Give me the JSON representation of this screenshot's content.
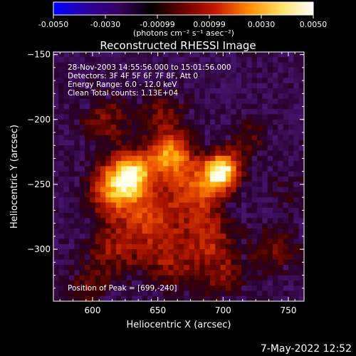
{
  "colorbar": {
    "ticks": [
      "-0.0050",
      "-0.0030",
      "-0.00099",
      "0.00099",
      "0.0030",
      "0.0050"
    ],
    "units": "(photons cm⁻² s⁻¹ asec⁻²)",
    "stops": [
      "#0000ff",
      "#2a00a0",
      "#3a0060",
      "#000000",
      "#6a0000",
      "#c81800",
      "#ff8a00",
      "#ffe060",
      "#ffffff"
    ]
  },
  "chart_data": {
    "type": "heatmap",
    "title": "Reconstructed RHESSI Image",
    "xlabel": "Heliocentric X (arcsec)",
    "ylabel": "Heliocentric Y (arcsec)",
    "xlim": [
      570,
      762
    ],
    "ylim": [
      -340,
      -148
    ],
    "x_ticks": [
      600,
      650,
      700,
      750
    ],
    "y_ticks": [
      -150,
      -200,
      -250,
      -300
    ],
    "info_lines": [
      "28-Nov-2003 14:55:56.000 to 15:01:56.000",
      "Detectors: 3F 4F 5F 6F 7F 8F, Att 0",
      "Energy Range: 6.0 - 12.0 keV",
      "Clean     Total counts: 1.13E+04"
    ],
    "peak_label": "Position of Peak = [699,-240]",
    "peak": [
      699,
      -240
    ],
    "blobs": [
      {
        "x": 699,
        "y": -240,
        "amp": 1.0,
        "s": 10
      },
      {
        "x": 630,
        "y": -242,
        "amp": 0.85,
        "s": 12
      },
      {
        "x": 660,
        "y": -228,
        "amp": 0.75,
        "s": 12
      },
      {
        "x": 615,
        "y": -255,
        "amp": 0.6,
        "s": 14
      },
      {
        "x": 680,
        "y": -255,
        "amp": 0.55,
        "s": 14
      },
      {
        "x": 645,
        "y": -275,
        "amp": 0.5,
        "s": 16
      },
      {
        "x": 690,
        "y": -290,
        "amp": 0.4,
        "s": 14
      },
      {
        "x": 615,
        "y": -300,
        "amp": 0.35,
        "s": 16
      },
      {
        "x": 660,
        "y": -310,
        "amp": 0.35,
        "s": 16
      },
      {
        "x": 700,
        "y": -320,
        "amp": 0.3,
        "s": 14
      },
      {
        "x": 610,
        "y": -200,
        "amp": 0.35,
        "s": 14
      },
      {
        "x": 655,
        "y": -195,
        "amp": 0.3,
        "s": 14
      },
      {
        "x": 720,
        "y": -215,
        "amp": 0.25,
        "s": 12
      },
      {
        "x": 740,
        "y": -300,
        "amp": 0.3,
        "s": 14
      },
      {
        "x": 595,
        "y": -330,
        "amp": 0.25,
        "s": 12
      },
      {
        "x": 750,
        "y": -255,
        "amp": 0.18,
        "s": 10
      }
    ]
  },
  "footer": {
    "timestamp": "7-May-2022 12:52"
  }
}
